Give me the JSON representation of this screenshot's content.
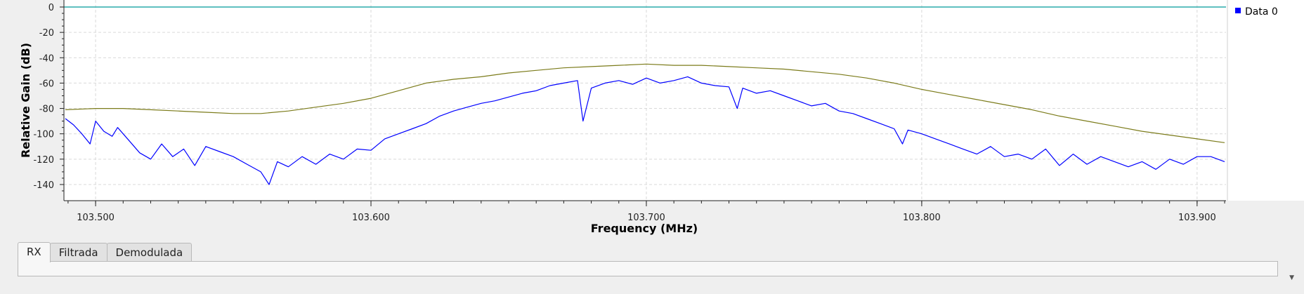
{
  "chart_data": {
    "type": "line",
    "title": "",
    "xlabel": "Frequency (MHz)",
    "ylabel": "Relative Gain (dB)",
    "xlim": [
      103.4885,
      103.9105
    ],
    "ylim": [
      -145,
      0
    ],
    "x_ticks": [
      103.5,
      103.6,
      103.7,
      103.8,
      103.9
    ],
    "x_tick_labels": [
      "103.500",
      "103.600",
      "103.700",
      "103.800",
      "103.900"
    ],
    "y_ticks": [
      0,
      -20,
      -40,
      -60,
      -80,
      -100,
      -120,
      -140
    ],
    "y_tick_labels": [
      "0",
      "-20",
      "-40",
      "-60",
      "-80",
      "-100",
      "-120",
      "-140"
    ],
    "grid": true,
    "legend_position": "right",
    "series": [
      {
        "name": "Data 0",
        "color": "#0000ff",
        "x": [
          103.489,
          103.492,
          103.495,
          103.498,
          103.5,
          103.503,
          103.506,
          103.508,
          103.512,
          103.516,
          103.52,
          103.524,
          103.528,
          103.532,
          103.536,
          103.54,
          103.545,
          103.55,
          103.555,
          103.56,
          103.563,
          103.566,
          103.57,
          103.575,
          103.58,
          103.585,
          103.59,
          103.595,
          103.6,
          103.605,
          103.61,
          103.615,
          103.62,
          103.625,
          103.63,
          103.635,
          103.64,
          103.645,
          103.65,
          103.655,
          103.66,
          103.665,
          103.67,
          103.675,
          103.677,
          103.68,
          103.685,
          103.69,
          103.695,
          103.7,
          103.705,
          103.71,
          103.715,
          103.72,
          103.725,
          103.73,
          103.733,
          103.735,
          103.74,
          103.745,
          103.75,
          103.755,
          103.76,
          103.765,
          103.77,
          103.775,
          103.78,
          103.785,
          103.79,
          103.793,
          103.795,
          103.8,
          103.805,
          103.81,
          103.815,
          103.82,
          103.825,
          103.83,
          103.835,
          103.84,
          103.845,
          103.85,
          103.855,
          103.86,
          103.865,
          103.87,
          103.875,
          103.88,
          103.885,
          103.89,
          103.895,
          103.9,
          103.905,
          103.91
        ],
        "y": [
          -88,
          -93,
          -100,
          -108,
          -90,
          -98,
          -102,
          -95,
          -105,
          -115,
          -120,
          -108,
          -118,
          -112,
          -125,
          -110,
          -114,
          -118,
          -124,
          -130,
          -140,
          -122,
          -126,
          -118,
          -124,
          -116,
          -120,
          -112,
          -113,
          -104,
          -100,
          -96,
          -92,
          -86,
          -82,
          -79,
          -76,
          -74,
          -71,
          -68,
          -66,
          -62,
          -60,
          -58,
          -90,
          -64,
          -60,
          -58,
          -61,
          -56,
          -60,
          -58,
          -55,
          -60,
          -62,
          -63,
          -80,
          -64,
          -68,
          -66,
          -70,
          -74,
          -78,
          -76,
          -82,
          -84,
          -88,
          -92,
          -96,
          -108,
          -97,
          -100,
          -104,
          -108,
          -112,
          -116,
          -110,
          -118,
          -116,
          -120,
          -112,
          -125,
          -116,
          -124,
          -118,
          -122,
          -126,
          -122,
          -128,
          -120,
          -124,
          -118,
          -118,
          -122
        ]
      },
      {
        "name": "",
        "color": "#7b7b1a",
        "x": [
          103.489,
          103.5,
          103.51,
          103.52,
          103.53,
          103.54,
          103.55,
          103.56,
          103.57,
          103.58,
          103.59,
          103.6,
          103.61,
          103.62,
          103.63,
          103.64,
          103.65,
          103.66,
          103.67,
          103.68,
          103.69,
          103.7,
          103.71,
          103.72,
          103.73,
          103.74,
          103.75,
          103.76,
          103.77,
          103.78,
          103.79,
          103.8,
          103.81,
          103.82,
          103.83,
          103.84,
          103.85,
          103.86,
          103.87,
          103.88,
          103.89,
          103.9,
          103.91
        ],
        "y": [
          -81,
          -80,
          -80,
          -81,
          -82,
          -83,
          -84,
          -84,
          -82,
          -79,
          -76,
          -72,
          -66,
          -60,
          -57,
          -55,
          -52,
          -50,
          -48,
          -47,
          -46,
          -45,
          -46,
          -46,
          -47,
          -48,
          -49,
          -51,
          -53,
          -56,
          -60,
          -65,
          -69,
          -73,
          -77,
          -81,
          -86,
          -90,
          -94,
          -98,
          -101,
          -104,
          -107
        ]
      },
      {
        "name": "",
        "color": "#009a9a",
        "x": [
          103.4885,
          103.9105
        ],
        "y": [
          0,
          0
        ]
      }
    ]
  },
  "tabs": [
    {
      "label": "RX",
      "active": true
    },
    {
      "label": "Filtrada",
      "active": false
    },
    {
      "label": "Demodulada",
      "active": false
    }
  ]
}
